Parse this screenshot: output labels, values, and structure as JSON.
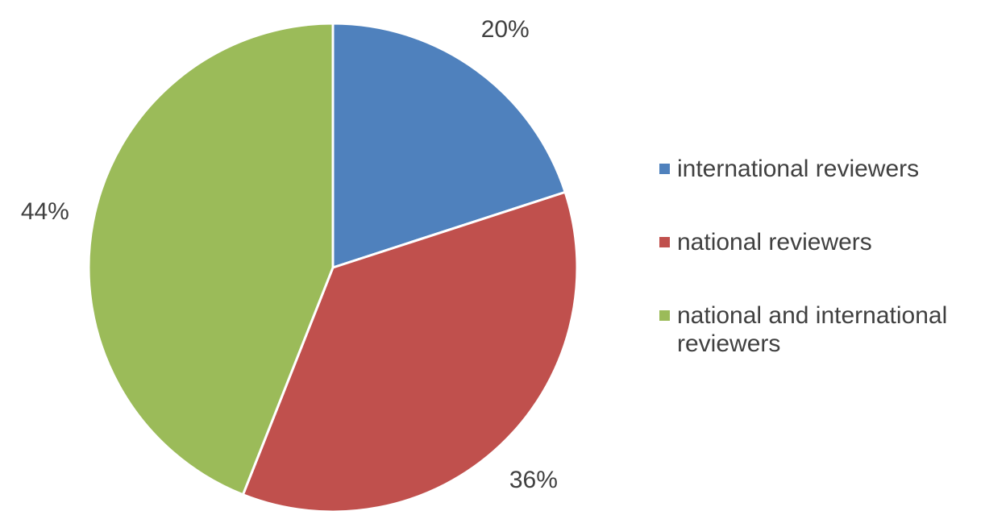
{
  "chart_data": {
    "type": "pie",
    "categories": [
      "international reviewers",
      "national reviewers",
      "national and international reviewers"
    ],
    "values": [
      20,
      36,
      44
    ],
    "value_labels": [
      "20%",
      "36%",
      "44%"
    ],
    "colors": [
      "#4f81bd",
      "#c0504d",
      "#9bbb59"
    ],
    "legend": "right"
  }
}
